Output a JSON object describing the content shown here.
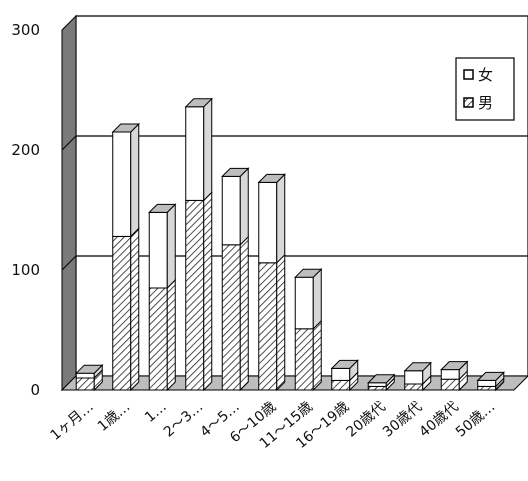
{
  "chart_data": {
    "type": "bar",
    "stacked": true,
    "three_d": true,
    "categories": [
      "1ヶ月…",
      "1歳…",
      "1…",
      "2～3…",
      "4～5…",
      "6～10歳",
      "11～15歳",
      "16～19歳",
      "20歳代",
      "30歳代",
      "40歳代",
      "50歳…"
    ],
    "series": [
      {
        "name": "男",
        "values": [
          10,
          128,
          85,
          158,
          121,
          106,
          51,
          8,
          3,
          5,
          9,
          3
        ]
      },
      {
        "name": "女",
        "values": [
          4,
          87,
          63,
          78,
          57,
          67,
          43,
          10,
          3,
          11,
          8,
          5
        ]
      }
    ],
    "ylim": [
      0,
      300
    ],
    "yticks": [
      0,
      100,
      200,
      300
    ],
    "grid": true,
    "legend": "top-right",
    "colors": {
      "男": "#ffffff",
      "女": "#ffffff",
      "floor": "#bdbdbd",
      "back_wall": "#7a7a7a"
    }
  }
}
